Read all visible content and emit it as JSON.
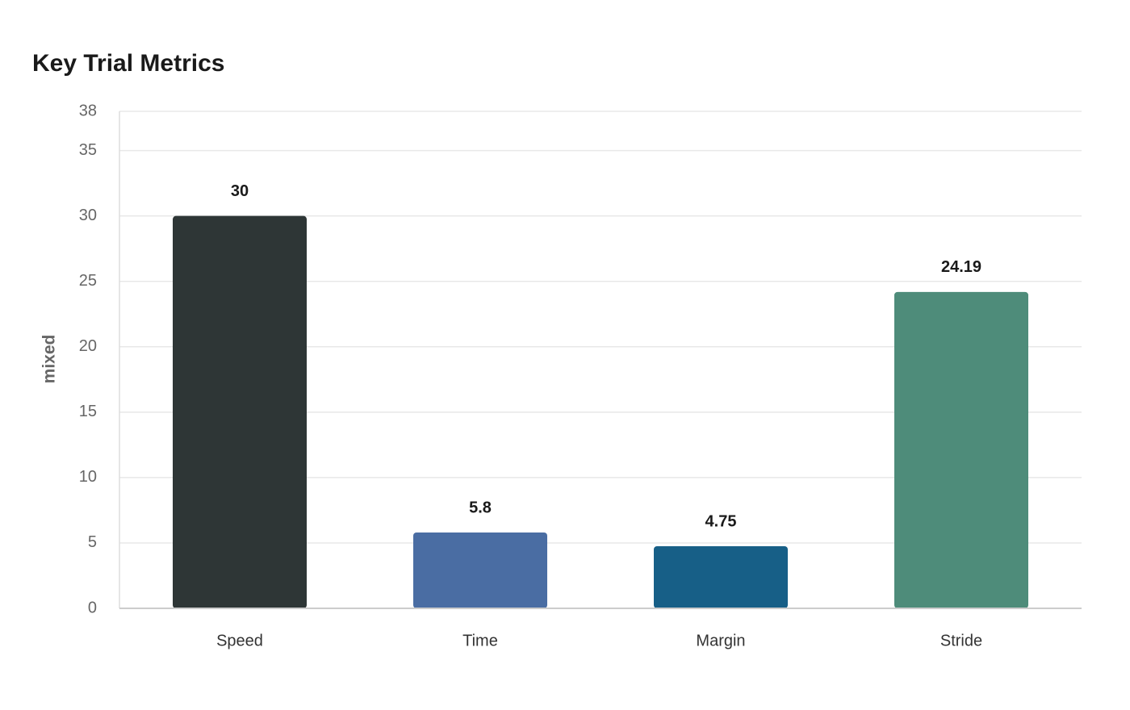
{
  "chart_data": {
    "type": "bar",
    "title": "Key Trial Metrics",
    "y_label": "mixed",
    "categories": [
      "Speed",
      "Time",
      "Margin",
      "Stride"
    ],
    "values": [
      30,
      5.8,
      4.75,
      24.19
    ],
    "colors": [
      "#2e3636",
      "#4a6da3",
      "#175f87",
      "#4e8c7a"
    ],
    "ylim": [
      0,
      38
    ],
    "yticks": [
      0,
      5,
      10,
      15,
      20,
      25,
      30,
      35,
      38
    ],
    "grid": true
  }
}
